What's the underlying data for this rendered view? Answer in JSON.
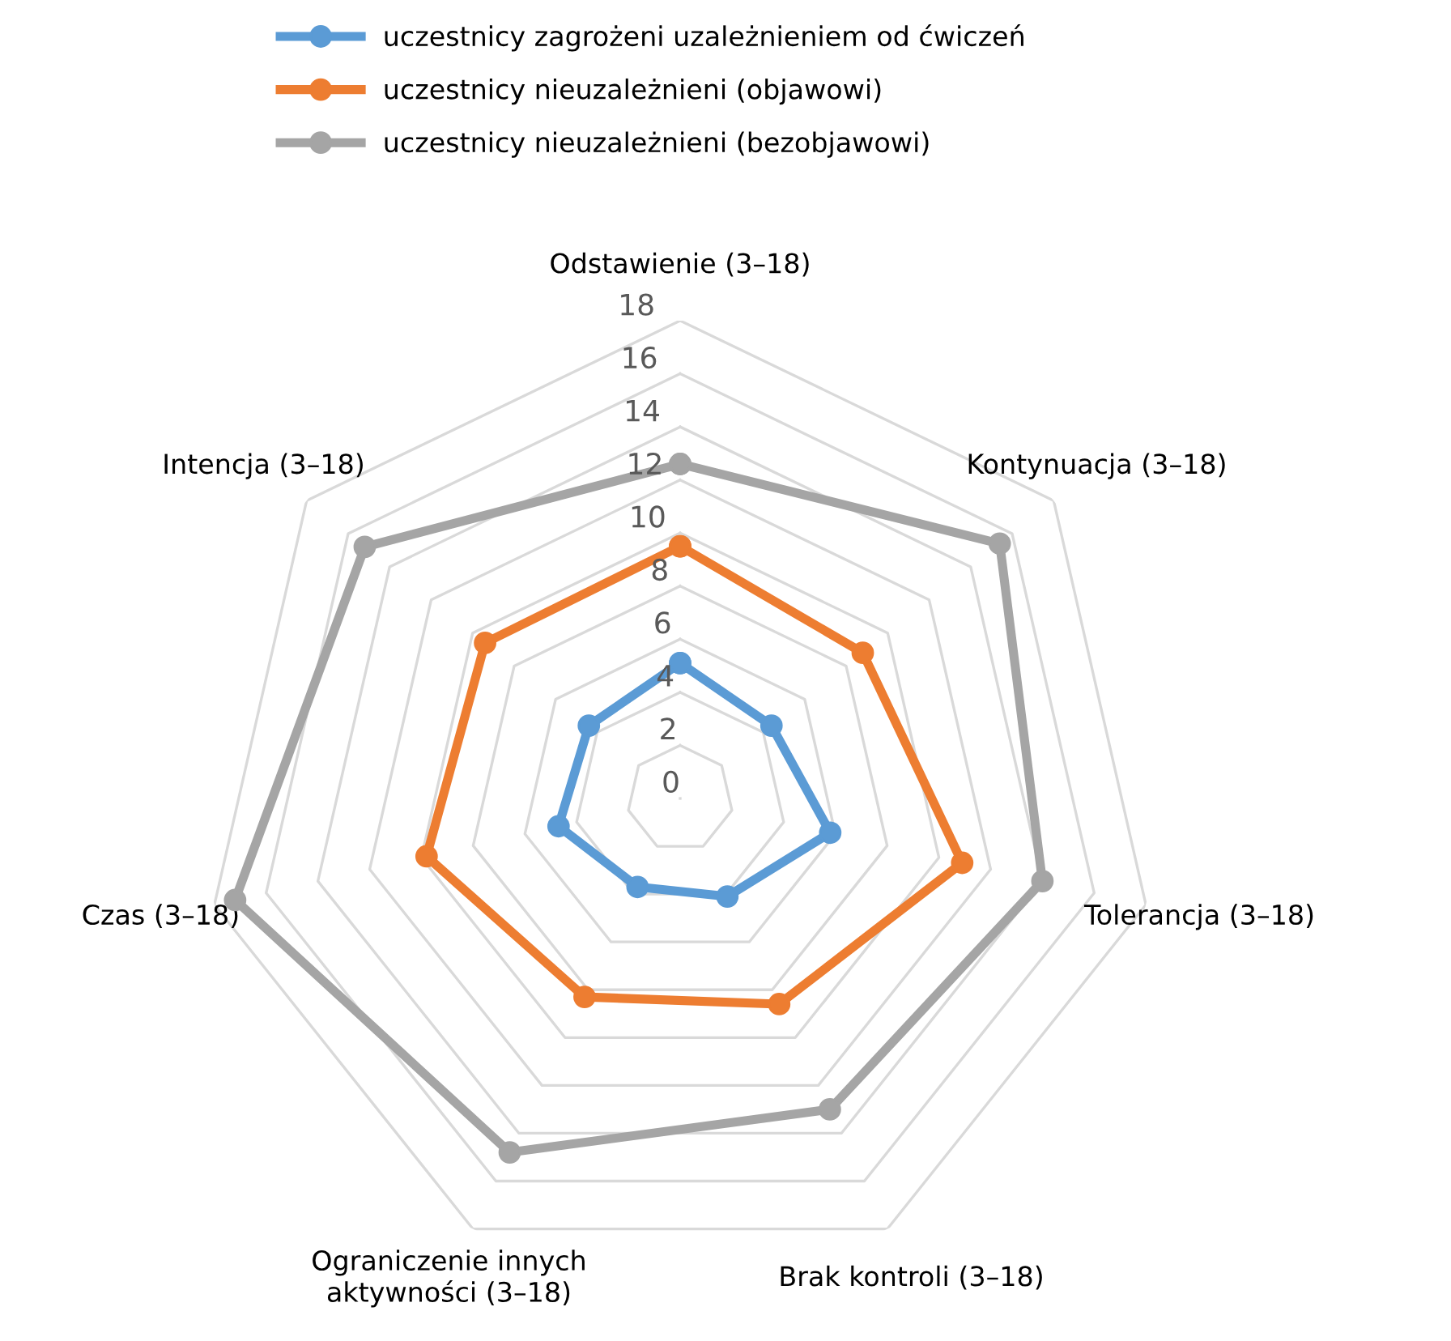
{
  "chart_data": {
    "type": "radar",
    "categories": [
      "Odstawienie (3–18)",
      "Kontynuacja (3–18)",
      "Tolerancja (3–18)",
      "Brak kontroli (3–18)",
      "Ograniczenie innych\naktywności (3–18)",
      "Czas (3–18)",
      "Intencja (3–18)"
    ],
    "series": [
      {
        "name": "uczestnicy zagrożeni uzależnieniem od ćwiczeń",
        "color": "#5b9bd5",
        "values": [
          5.1,
          4.4,
          5.8,
          4.1,
          3.7,
          4.7,
          4.4
        ]
      },
      {
        "name": "uczestnicy nieuzależnieni (objawowi)",
        "color": "#ed7d31",
        "values": [
          9.5,
          8.8,
          10.9,
          8.6,
          8.3,
          9.8,
          9.4
        ]
      },
      {
        "name": "uczestnicy nieuzależnieni (bezobjawowi)",
        "color": "#a5a5a5",
        "values": [
          12.6,
          15.4,
          14.0,
          13.0,
          14.8,
          17.2,
          15.2
        ]
      }
    ],
    "ylim": [
      0,
      18
    ],
    "yticks": [
      0,
      2,
      4,
      6,
      8,
      10,
      12,
      14,
      16,
      18
    ],
    "grid": true,
    "legend": "top",
    "marker": "circle",
    "line_style": "solid"
  }
}
